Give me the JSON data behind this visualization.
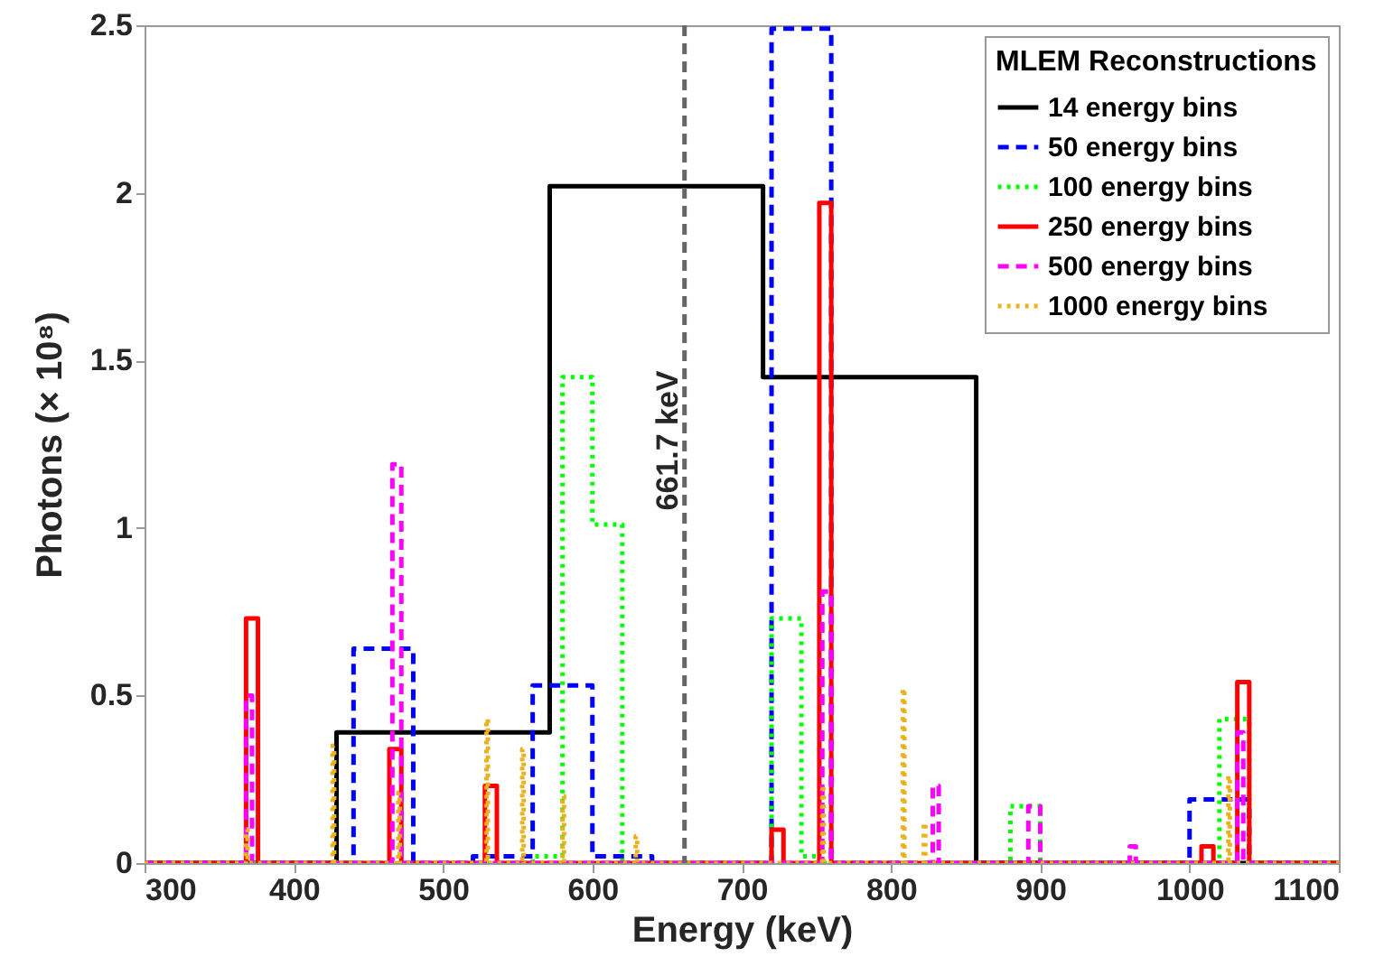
{
  "chart_data": {
    "type": "step",
    "xlabel": "Energy (keV)",
    "ylabel": "Photons (× 10⁸)",
    "legend_title": "MLEM Reconstructions",
    "legend": "top right",
    "xlim": [
      300,
      1100
    ],
    "xticks": [
      300,
      400,
      500,
      600,
      700,
      800,
      900,
      1000,
      1100
    ],
    "ylim": [
      0,
      2.5
    ],
    "yticks": [
      0,
      0.5,
      1,
      1.5,
      2,
      2.5
    ],
    "ref_lines": [
      {
        "axis": "x",
        "value": 661.7,
        "label": "661.7 keV",
        "color": "#666666",
        "line_style": "dashed"
      }
    ],
    "series": [
      {
        "name": "14 energy bins",
        "color": "#000000",
        "line_style": "solid",
        "x": [
          300,
          428.6,
          571.4,
          714.3,
          857.1,
          1100
        ],
        "values": [
          0,
          0.39,
          2.02,
          1.45,
          0,
          0
        ]
      },
      {
        "name": "50 energy bins",
        "color": "#0000ff",
        "line_style": "dashed",
        "x": [
          300,
          440,
          480,
          520,
          560,
          600,
          640,
          720,
          760,
          1000,
          1040,
          1100
        ],
        "values": [
          0,
          0.64,
          0,
          0.02,
          0.53,
          0.02,
          0,
          2.49,
          0,
          0.19,
          0,
          0
        ]
      },
      {
        "name": "100 energy bins",
        "color": "#00ff00",
        "line_style": "dotted",
        "x": [
          300,
          560,
          580,
          600,
          620,
          720,
          740,
          750,
          880,
          900,
          1020,
          1040,
          1100
        ],
        "values": [
          0,
          0.02,
          1.45,
          1.01,
          0,
          0.73,
          0.02,
          0,
          0.17,
          0,
          0.43,
          0,
          0
        ]
      },
      {
        "name": "250 energy bins",
        "color": "#ff0000",
        "line_style": "solid",
        "x": [
          300,
          368,
          376,
          464,
          472,
          528,
          536,
          720,
          728,
          752,
          760,
          1008,
          1016,
          1032,
          1040,
          1100
        ],
        "values": [
          0,
          0.73,
          0,
          0.34,
          0,
          0.23,
          0,
          0.1,
          0,
          1.97,
          0,
          0.05,
          0,
          0.54,
          0,
          0
        ]
      },
      {
        "name": "500 energy bins",
        "color": "#ff00ff",
        "line_style": "dashed",
        "x": [
          300,
          368,
          372,
          466,
          472,
          754,
          760,
          828,
          832,
          892,
          900,
          960,
          964,
          1032,
          1036,
          1100
        ],
        "values": [
          0,
          0.5,
          0,
          1.19,
          0,
          0.81,
          0,
          0.23,
          0,
          0.17,
          0,
          0.05,
          0,
          0.39,
          0,
          0
        ]
      },
      {
        "name": "1000 energy bins",
        "color": "#edb120",
        "line_style": "dotted",
        "x": [
          300,
          368,
          369,
          426,
          427,
          470,
          471,
          529,
          530,
          553,
          554,
          580,
          581,
          629,
          630,
          754,
          755,
          808,
          809,
          822,
          823,
          1026,
          1027,
          1100
        ],
        "values": [
          0,
          0.1,
          0,
          0.35,
          0,
          0.21,
          0,
          0.43,
          0,
          0.34,
          0,
          0.2,
          0,
          0.08,
          0,
          0.22,
          0,
          0.52,
          0,
          0.12,
          0,
          0.26,
          0,
          0
        ]
      }
    ]
  }
}
